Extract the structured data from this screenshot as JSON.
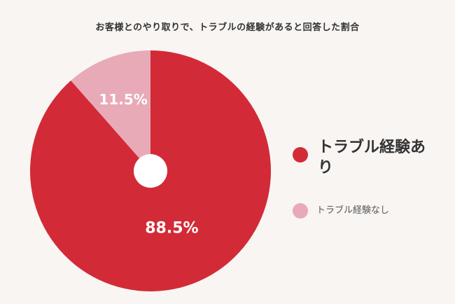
{
  "chart_data": {
    "type": "pie",
    "title": "お客様とのやり取りで、トラブルの経験があると回答した割合",
    "categories": [
      "トラブル経験あり",
      "トラブル経験なし"
    ],
    "values": [
      88.5,
      11.5
    ],
    "value_labels": [
      "88.5%",
      "11.5%"
    ],
    "colors": [
      "#d22b37",
      "#e8aab6"
    ],
    "legend_position": "right",
    "donut_hole": true
  }
}
